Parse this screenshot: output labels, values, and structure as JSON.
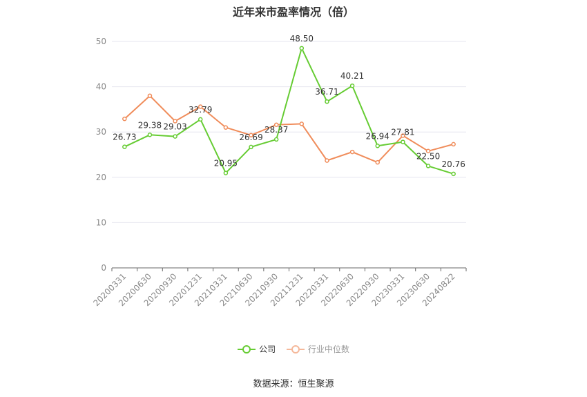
{
  "chart_data": {
    "type": "line",
    "title": "近年来市盈率情况（倍）",
    "categories": [
      "20200331",
      "20200630",
      "20200930",
      "20201231",
      "20210331",
      "20210630",
      "20210930",
      "20211231",
      "20220331",
      "20220630",
      "20220930",
      "20230331",
      "20230630",
      "20240822"
    ],
    "series": [
      {
        "name": "公司",
        "color": "#66cc33",
        "values": [
          26.73,
          29.38,
          29.03,
          32.79,
          20.95,
          26.69,
          28.37,
          48.5,
          36.71,
          40.21,
          26.94,
          27.81,
          22.5,
          20.76
        ],
        "labels": [
          "26.73",
          "29.38",
          "29.03",
          "32.79",
          "20.95",
          "26.69",
          "28.37",
          "48.50",
          "36.71",
          "40.21",
          "26.94",
          "27.81",
          "22.50",
          "20.76"
        ]
      },
      {
        "name": "行业中位数",
        "color": "#f08c5a",
        "values": [
          32.9,
          38.0,
          32.4,
          35.6,
          31.0,
          29.3,
          31.6,
          31.8,
          23.7,
          25.6,
          23.3,
          29.2,
          25.8,
          27.3
        ]
      }
    ],
    "yticks": [
      0,
      10,
      20,
      30,
      40,
      50
    ],
    "ylim": [
      0,
      50
    ],
    "xlabel": "",
    "ylabel": "",
    "grid": true,
    "legend_position": "bottom"
  },
  "source_text": "数据来源：恒生聚源"
}
